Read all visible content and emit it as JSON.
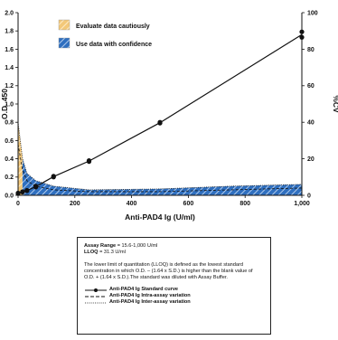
{
  "chart_data": {
    "type": "line",
    "xlabel": "Anti-PAD4 Ig (U/ml)",
    "ylabel": "O.D. 450",
    "y2label": "%CV",
    "xlim": [
      0,
      1000
    ],
    "ylim": [
      0,
      2.0
    ],
    "y2lim": [
      0,
      100
    ],
    "x_ticks": [
      "0",
      "200",
      "400",
      "600",
      "800",
      "1,000"
    ],
    "y_ticks": [
      "0.0",
      "0.2",
      "0.4",
      "0.6",
      "0.8",
      "1.0",
      "1.2",
      "1.4",
      "1.6",
      "1.8",
      "2.0"
    ],
    "y2_ticks": [
      "0",
      "20",
      "40",
      "60",
      "80",
      "100"
    ],
    "grid": false,
    "legend": {
      "position": "top-left",
      "items": [
        {
          "label": "Evaluate data cautiously",
          "color": "#f3c879",
          "pattern": "hatch"
        },
        {
          "label": "Use data with confidence",
          "color": "#2f6fbf",
          "pattern": "hatch"
        }
      ]
    },
    "series": [
      {
        "name": "Anti-PAD4 Ig Standard curve",
        "axis": "left",
        "x": [
          0,
          0,
          15.6,
          15.6,
          31.3,
          31.3,
          62.5,
          62.5,
          125,
          125,
          250,
          250,
          500,
          500,
          1000,
          1000
        ],
        "y": [
          0.02,
          0.025,
          0.035,
          0.04,
          0.05,
          0.055,
          0.09,
          0.1,
          0.2,
          0.21,
          0.37,
          0.38,
          0.79,
          0.8,
          1.73,
          1.79
        ]
      },
      {
        "name": "Anti-PAD4 Ig Intra-assay variation",
        "axis": "right",
        "x": [
          0,
          15.6,
          31.3,
          62.5,
          125,
          250,
          500,
          750,
          1000
        ],
        "y": [
          28,
          14,
          8,
          5,
          3,
          2,
          2,
          3,
          4
        ]
      },
      {
        "name": "Anti-PAD4 Ig Inter-assay variation",
        "axis": "right",
        "x": [
          0,
          15.6,
          31.3,
          62.5,
          125,
          250,
          500,
          750,
          1000
        ],
        "y": [
          40,
          20,
          12,
          8,
          5,
          3,
          3.5,
          5,
          6
        ]
      }
    ],
    "regions": [
      {
        "label": "Evaluate data cautiously",
        "x": [
          0,
          15.6
        ],
        "color": "#f3c879"
      },
      {
        "label": "Use data with confidence",
        "x": [
          15.6,
          1000
        ],
        "color": "#2f6fbf"
      }
    ]
  },
  "info": {
    "range_label": "Assay Range",
    "range_value": "= 15.6-1,000 U/ml",
    "lloq_label": "LLOQ",
    "lloq_value": "= 31.3 U/ml",
    "description": "The lower limit of quantitation (LLOQ) is defined as the lowest standard concentration in which O.D. – (1.64 x S.D.) is higher than the blank value of O.D. + (1.64 x S.D.).The standard was diluted with Assay Buffer.",
    "keys": [
      {
        "label": "Anti-PAD4 Ig Standard curve",
        "style": "solid-dot"
      },
      {
        "label": "Anti-PAD4 Ig Intra-assay variation",
        "style": "dashed"
      },
      {
        "label": "Anti-PAD4 Ig Inter-assay variation",
        "style": "dotted"
      }
    ]
  }
}
